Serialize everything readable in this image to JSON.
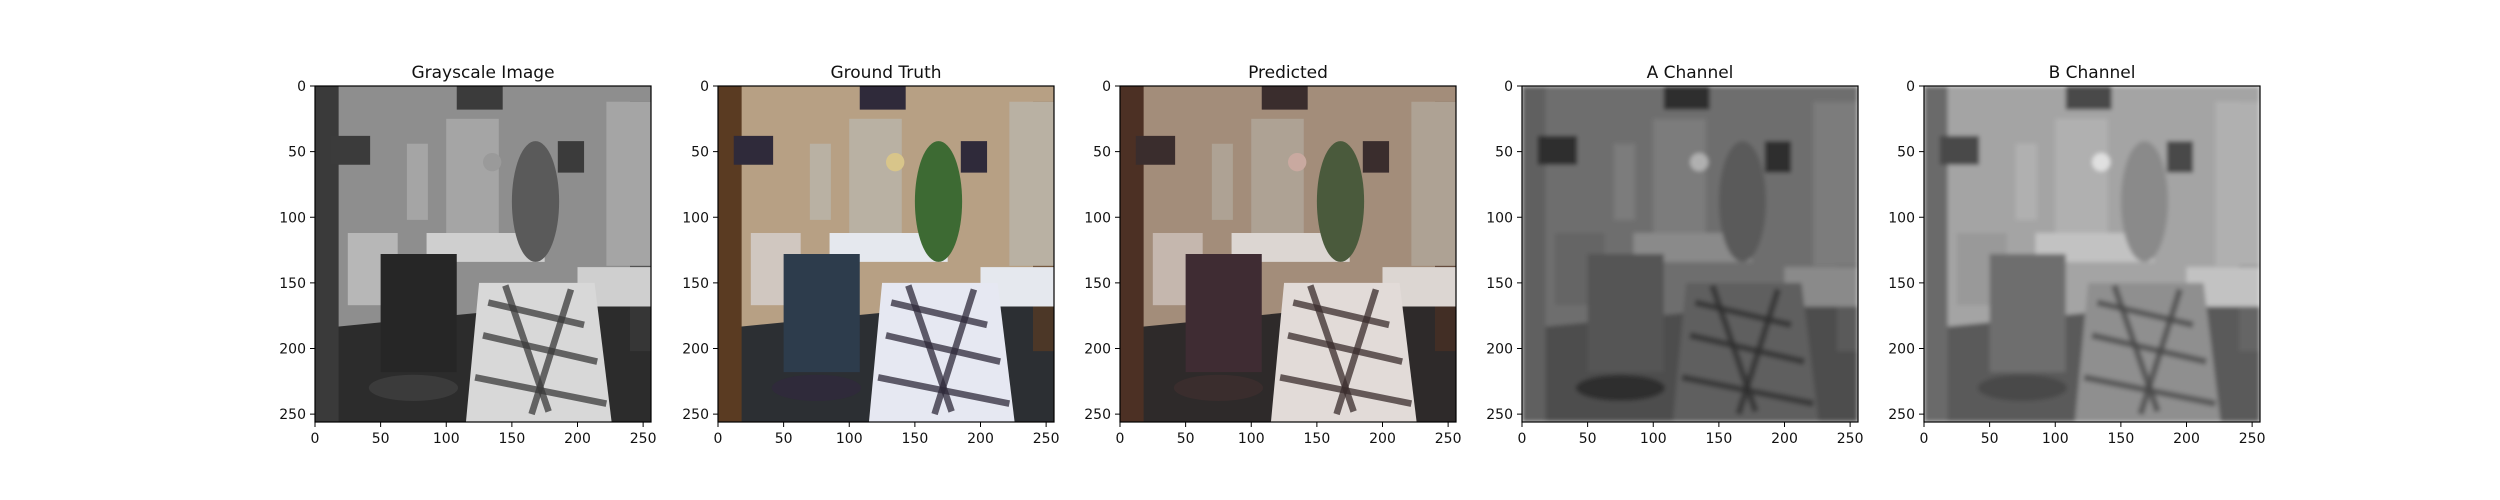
{
  "chart_data": [
    {
      "type": "image",
      "title": "Grayscale Image",
      "image_size": [
        256,
        256
      ],
      "xticks": [
        0,
        50,
        100,
        150,
        200,
        250
      ],
      "yticks": [
        0,
        50,
        100,
        150,
        200,
        250
      ],
      "xlim": [
        0,
        256
      ],
      "ylim": [
        256,
        0
      ],
      "palette": {
        "wall": "#8e8e8e",
        "floor": "#2c2c2c",
        "wood": "#3a3a3a",
        "cape": "#262626",
        "drape_light": "#d8d8d8",
        "drape_dark": "#3b3b3b",
        "mirror": "#a5a5a5",
        "counter": "#cfcfcf",
        "plant": "#5a5a5a",
        "accent": "#9a9a9a"
      },
      "blur": 0
    },
    {
      "type": "image",
      "title": "Ground Truth",
      "image_size": [
        256,
        256
      ],
      "xticks": [
        0,
        50,
        100,
        150,
        200,
        250
      ],
      "yticks": [
        0,
        50,
        100,
        150,
        200,
        250
      ],
      "xlim": [
        0,
        256
      ],
      "ylim": [
        256,
        0
      ],
      "palette": {
        "wall": "#b7a084",
        "floor": "#2c2f33",
        "wood": "#5a3b22",
        "cape": "#2d3c4c",
        "drape_light": "#e6e8f2",
        "drape_dark": "#2f2a3a",
        "mirror": "#b9b1a3",
        "counter": "#e5e8ee",
        "plant": "#3d6a33",
        "accent": "#d8c58a"
      },
      "blur": 0
    },
    {
      "type": "image",
      "title": "Predicted",
      "image_size": [
        256,
        256
      ],
      "xticks": [
        0,
        50,
        100,
        150,
        200,
        250
      ],
      "yticks": [
        0,
        50,
        100,
        150,
        200,
        250
      ],
      "xlim": [
        0,
        256
      ],
      "ylim": [
        256,
        0
      ],
      "palette": {
        "wall": "#a38d7a",
        "floor": "#2e2a2a",
        "wood": "#4c3024",
        "cape": "#3f2c33",
        "drape_light": "#e2dbd8",
        "drape_dark": "#3a2d2d",
        "mirror": "#aea294",
        "counter": "#dcd6d2",
        "plant": "#4a5a3c",
        "accent": "#c9a9a0"
      },
      "blur": 0
    },
    {
      "type": "image",
      "title": "A Channel",
      "image_size": [
        256,
        256
      ],
      "xticks": [
        0,
        50,
        100,
        150,
        200,
        250
      ],
      "yticks": [
        0,
        50,
        100,
        150,
        200,
        250
      ],
      "xlim": [
        0,
        256
      ],
      "ylim": [
        256,
        0
      ],
      "palette": {
        "wall": "#6e6e6e",
        "floor": "#4d4d4d",
        "wood": "#606060",
        "cape": "#555555",
        "drape_light": "#5f5f5f",
        "drape_dark": "#2e2e2e",
        "mirror": "#7b7b7b",
        "counter": "#8a8a8a",
        "plant": "#5a5a5a",
        "accent": "#b0b0b0"
      },
      "blur": 1.6
    },
    {
      "type": "image",
      "title": "B Channel",
      "image_size": [
        256,
        256
      ],
      "xticks": [
        0,
        50,
        100,
        150,
        200,
        250
      ],
      "yticks": [
        0,
        50,
        100,
        150,
        200,
        250
      ],
      "xlim": [
        0,
        256
      ],
      "ylim": [
        256,
        0
      ],
      "palette": {
        "wall": "#a4a4a4",
        "floor": "#5a5a5a",
        "wood": "#6a6a6a",
        "cape": "#6e6e6e",
        "drape_light": "#8f8f8f",
        "drape_dark": "#4a4a4a",
        "mirror": "#b0b0b0",
        "counter": "#c2c2c2",
        "plant": "#8a8a8a",
        "accent": "#e0e0e0"
      },
      "blur": 1.6
    }
  ]
}
